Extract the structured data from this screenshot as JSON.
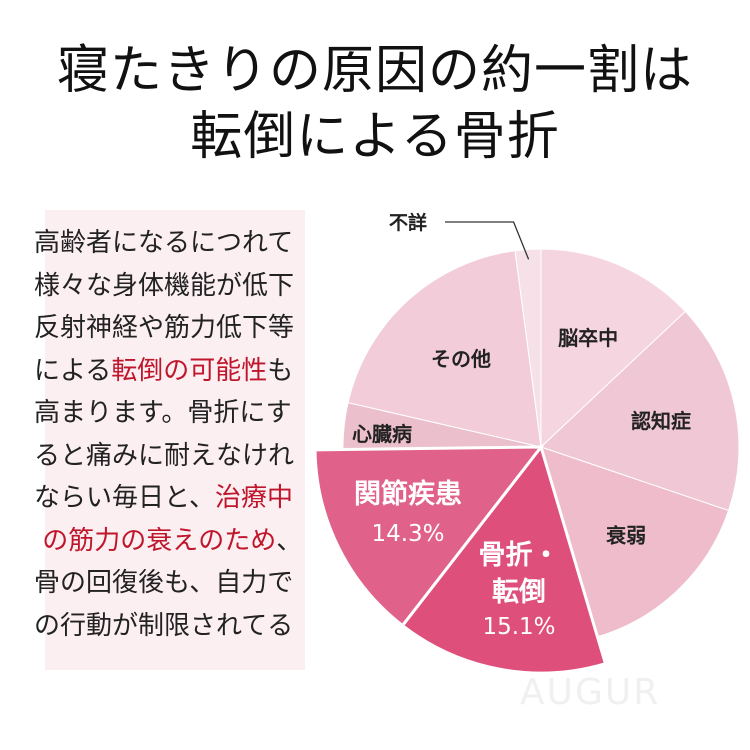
{
  "title": {
    "line1": "寝たきりの原因の約一割は",
    "line2": "転倒による骨折"
  },
  "body_text": [
    [
      {
        "t": "高齢者になるにつれて"
      }
    ],
    [
      {
        "t": "様々な身体機能が低下"
      }
    ],
    [
      {
        "t": "反射神経や筋力低下等"
      }
    ],
    [
      {
        "t": "による"
      },
      {
        "t": "転倒の可能性",
        "red": true
      },
      {
        "t": "も"
      }
    ],
    [
      {
        "t": "高まります。骨折にす"
      }
    ],
    [
      {
        "t": "ると痛みに耐えなけれ"
      }
    ],
    [
      {
        "t": "ならい毎日と、"
      },
      {
        "t": "治療中",
        "red": true
      }
    ],
    [
      {
        "t": " "
      },
      {
        "t": "の筋力の衰えのため",
        "red": true
      },
      {
        "t": "、"
      }
    ],
    [
      {
        "t": "骨の回復後も、自力で"
      }
    ],
    [
      {
        "t": "の行動が制限されてる"
      }
    ]
  ],
  "watermark": "AUGUR",
  "colors": {
    "highlight_text": "#c0162c",
    "box_bg": "#fbeff2"
  },
  "chart_data": {
    "type": "pie",
    "start": "top, clockwise",
    "slices": [
      {
        "label": "不詳",
        "value": 2.1,
        "color": "#f7e1e8",
        "callout": true
      },
      {
        "label": "脳卒中",
        "value": 13.0,
        "color": "#f5d6e0"
      },
      {
        "label": "認知症",
        "value": 17.2,
        "color": "#f0c7d4"
      },
      {
        "label": "衰弱",
        "value": 15.2,
        "color": "#eebccb"
      },
      {
        "label": "骨折・転倒",
        "lines": [
          "骨折・",
          "転倒"
        ],
        "value": 15.1,
        "value_label": "15.1%",
        "color": "#de4f7c",
        "highlight": true
      },
      {
        "label": "関節疾患",
        "lines": [
          "関節疾患"
        ],
        "value": 14.3,
        "value_label": "14.3%",
        "color": "#e0628a",
        "highlight": true
      },
      {
        "label": "心臓病",
        "value": 3.8,
        "color": "#ecbfcd"
      },
      {
        "label": "その他",
        "value": 19.3,
        "color": "#f2ccd8"
      }
    ]
  }
}
